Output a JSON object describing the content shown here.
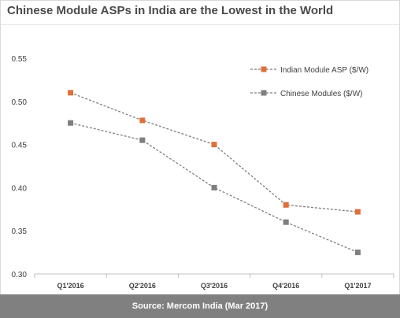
{
  "title": "Chinese Module ASPs in India are the Lowest in the World",
  "source": "Source: Mercom India (Mar 2017)",
  "chart_data": {
    "type": "line",
    "title": "Chinese Module ASPs in India are the Lowest in the World",
    "categories": [
      "Q1'2016",
      "Q2'2016",
      "Q3'2016",
      "Q4'2016",
      "Q1'2017"
    ],
    "series": [
      {
        "name": "Indian Module ASP ($/W)",
        "color": "#e0703a",
        "values": [
          0.51,
          0.478,
          0.45,
          0.38,
          0.372
        ]
      },
      {
        "name": "Chinese Modules ($/W)",
        "color": "#7f7f7f",
        "values": [
          0.475,
          0.455,
          0.4,
          0.36,
          0.325
        ]
      }
    ],
    "yticks": [
      "0.30",
      "0.35",
      "0.40",
      "0.45",
      "0.50",
      "0.55"
    ],
    "ylim": [
      0.3,
      0.55
    ],
    "xlabel": "",
    "ylabel": "",
    "grid": false,
    "legend": "top-right"
  }
}
